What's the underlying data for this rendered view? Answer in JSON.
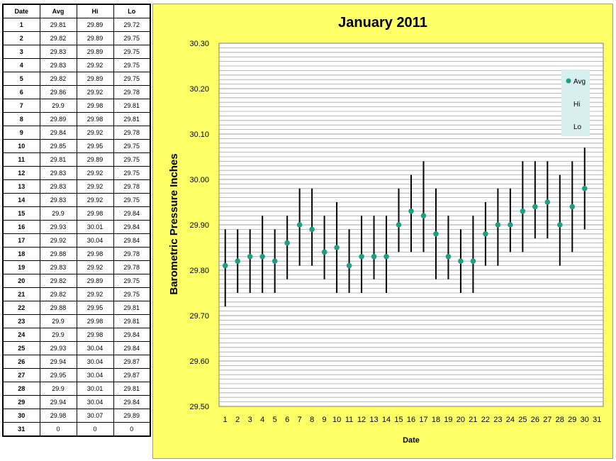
{
  "table": {
    "headers": [
      "Date",
      "Avg",
      "Hi",
      "Lo"
    ],
    "rows": [
      [
        "1",
        "29.81",
        "29.89",
        "29.72"
      ],
      [
        "2",
        "29.82",
        "29.89",
        "29.75"
      ],
      [
        "3",
        "29.83",
        "29.89",
        "29.75"
      ],
      [
        "4",
        "29.83",
        "29.92",
        "29.75"
      ],
      [
        "5",
        "29.82",
        "29.89",
        "29.75"
      ],
      [
        "6",
        "29.86",
        "29.92",
        "29.78"
      ],
      [
        "7",
        "29.9",
        "29.98",
        "29.81"
      ],
      [
        "8",
        "29.89",
        "29.98",
        "29.81"
      ],
      [
        "9",
        "29.84",
        "29.92",
        "29.78"
      ],
      [
        "10",
        "29.85",
        "29.95",
        "29.75"
      ],
      [
        "11",
        "29.81",
        "29.89",
        "29.75"
      ],
      [
        "12",
        "29.83",
        "29.92",
        "29.75"
      ],
      [
        "13",
        "29.83",
        "29.92",
        "29.78"
      ],
      [
        "14",
        "29.83",
        "29.92",
        "29.75"
      ],
      [
        "15",
        "29.9",
        "29.98",
        "29.84"
      ],
      [
        "16",
        "29.93",
        "30.01",
        "29.84"
      ],
      [
        "17",
        "29.92",
        "30.04",
        "29.84"
      ],
      [
        "18",
        "29.88",
        "29.98",
        "29.78"
      ],
      [
        "19",
        "29.83",
        "29.92",
        "29.78"
      ],
      [
        "20",
        "29.82",
        "29.89",
        "29.75"
      ],
      [
        "21",
        "29.82",
        "29.92",
        "29.75"
      ],
      [
        "22",
        "29.88",
        "29.95",
        "29.81"
      ],
      [
        "23",
        "29.9",
        "29.98",
        "29.81"
      ],
      [
        "24",
        "29.9",
        "29.98",
        "29.84"
      ],
      [
        "25",
        "29.93",
        "30.04",
        "29.84"
      ],
      [
        "26",
        "29.94",
        "30.04",
        "29.87"
      ],
      [
        "27",
        "29.95",
        "30.04",
        "29.87"
      ],
      [
        "28",
        "29.9",
        "30.01",
        "29.81"
      ],
      [
        "29",
        "29.94",
        "30.04",
        "29.84"
      ],
      [
        "30",
        "29.98",
        "30.07",
        "29.89"
      ],
      [
        "31",
        "0",
        "0",
        "0"
      ]
    ]
  },
  "chart_data": {
    "type": "scatter",
    "title": "January 2011",
    "xlabel": "Date",
    "ylabel": "Barometric Pressure Inches",
    "x": [
      1,
      2,
      3,
      4,
      5,
      6,
      7,
      8,
      9,
      10,
      11,
      12,
      13,
      14,
      15,
      16,
      17,
      18,
      19,
      20,
      21,
      22,
      23,
      24,
      25,
      26,
      27,
      28,
      29,
      30
    ],
    "x_ticks": [
      "1",
      "2",
      "3",
      "4",
      "5",
      "6",
      "7",
      "8",
      "9",
      "10",
      "11",
      "12",
      "13",
      "14",
      "15",
      "16",
      "17",
      "18",
      "19",
      "20",
      "21",
      "22",
      "23",
      "24",
      "25",
      "26",
      "27",
      "28",
      "29",
      "30",
      "31"
    ],
    "y_ticks": [
      "30.30",
      "30.20",
      "30.10",
      "30.00",
      "29.90",
      "29.80",
      "29.70",
      "29.60",
      "29.50"
    ],
    "ylim": [
      29.5,
      30.3
    ],
    "grid": true,
    "legend_position": "right",
    "series": [
      {
        "name": "Avg",
        "values": [
          29.81,
          29.82,
          29.83,
          29.83,
          29.82,
          29.86,
          29.9,
          29.89,
          29.84,
          29.85,
          29.81,
          29.83,
          29.83,
          29.83,
          29.9,
          29.93,
          29.92,
          29.88,
          29.83,
          29.82,
          29.82,
          29.88,
          29.9,
          29.9,
          29.93,
          29.94,
          29.95,
          29.9,
          29.94,
          29.98
        ],
        "color": "#1e9e82"
      },
      {
        "name": "Hi",
        "values": [
          29.89,
          29.89,
          29.89,
          29.92,
          29.89,
          29.92,
          29.98,
          29.98,
          29.92,
          29.95,
          29.89,
          29.92,
          29.92,
          29.92,
          29.98,
          30.01,
          30.04,
          29.98,
          29.92,
          29.89,
          29.92,
          29.95,
          29.98,
          29.98,
          30.04,
          30.04,
          30.04,
          30.01,
          30.04,
          30.07
        ]
      },
      {
        "name": "Lo",
        "values": [
          29.72,
          29.75,
          29.75,
          29.75,
          29.75,
          29.78,
          29.81,
          29.81,
          29.78,
          29.75,
          29.75,
          29.75,
          29.78,
          29.75,
          29.84,
          29.84,
          29.84,
          29.78,
          29.78,
          29.75,
          29.75,
          29.81,
          29.81,
          29.84,
          29.84,
          29.87,
          29.87,
          29.81,
          29.84,
          29.89
        ]
      }
    ]
  },
  "colors": {
    "chart_background": "#ffff66",
    "plot_background": "#ffffff",
    "marker": "#1e9e82",
    "legend_background": "#d7f0ef"
  }
}
